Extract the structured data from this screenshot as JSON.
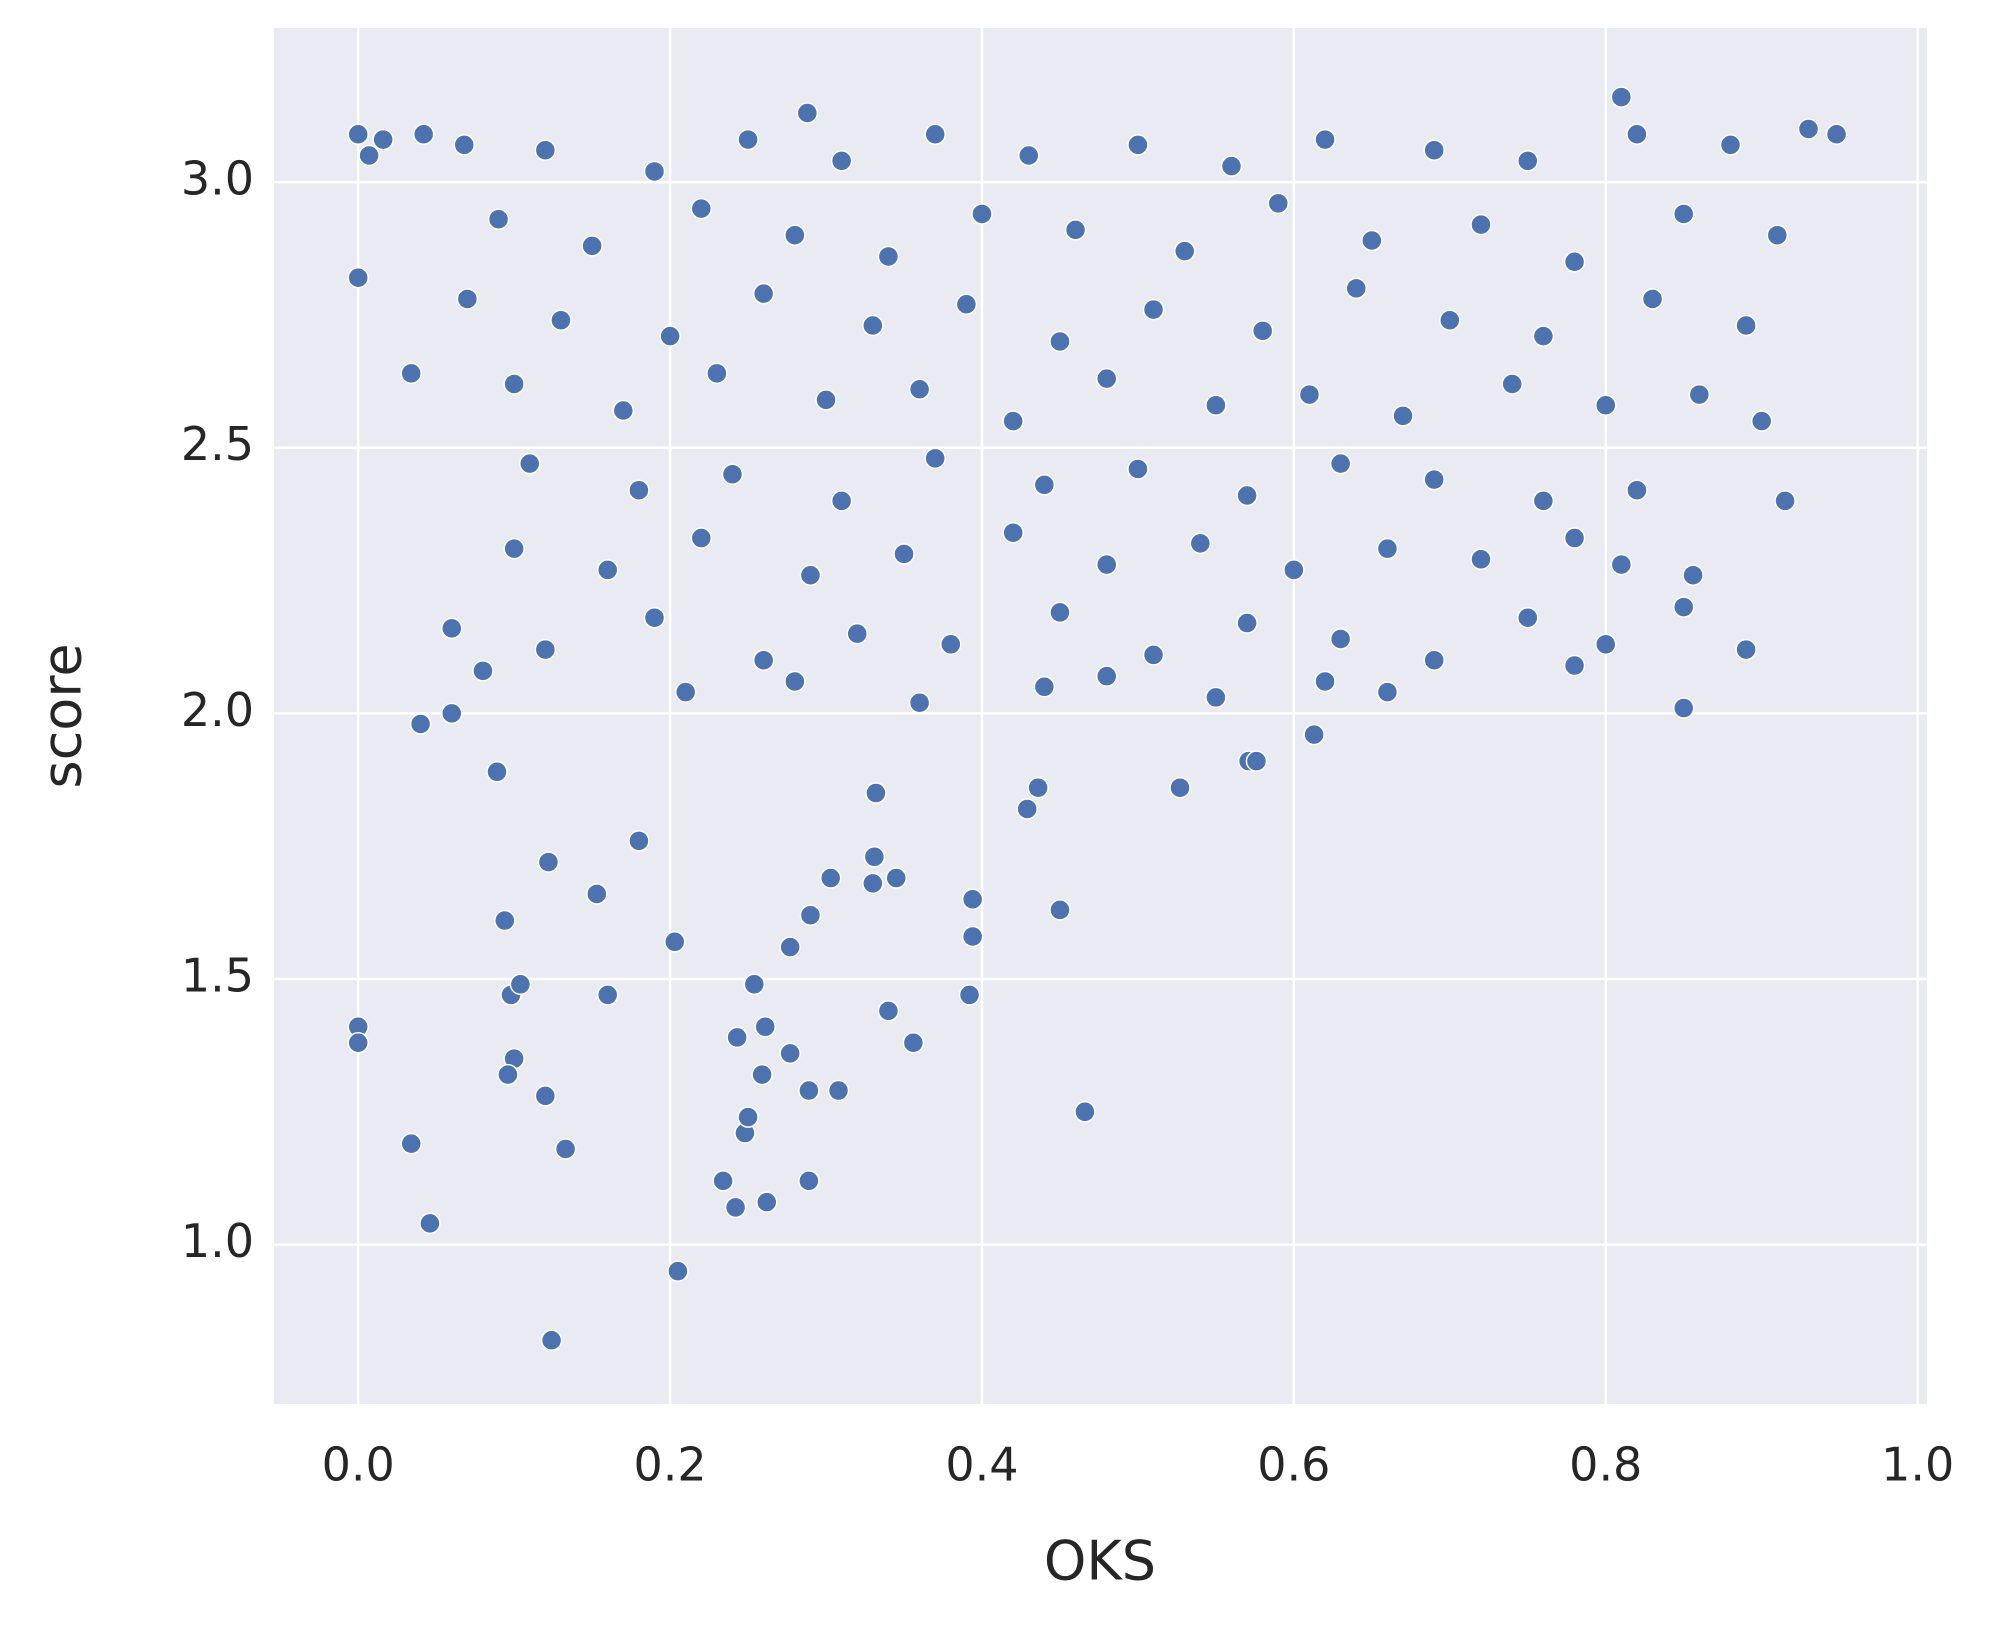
{
  "chart_data": {
    "type": "scatter",
    "x_label": "OKS",
    "y_label": "score",
    "color": "#4c72b0",
    "grid": true,
    "xlim": [
      -0.054,
      1.006
    ],
    "ylim": [
      0.7,
      3.29
    ],
    "xticks": [
      {
        "value": 0,
        "label": "0.0"
      },
      0.2,
      0.4,
      0.6,
      0.8,
      {
        "value": 1,
        "label": "1.0"
      }
    ],
    "yticks": [
      {
        "value": 1,
        "label": "1.0"
      },
      1.5,
      {
        "value": 2,
        "label": "2.0"
      },
      2.5,
      {
        "value": 3,
        "label": "3.0"
      }
    ],
    "x": [
      0.0,
      0.0,
      0.0,
      0.034,
      0.046,
      0.034,
      0.04,
      0.06,
      0.089,
      0.094,
      0.1,
      0.096,
      0.098,
      0.104,
      0.122,
      0.12,
      0.133,
      0.124,
      0.153,
      0.16,
      0.18,
      0.203,
      0.205,
      0.234,
      0.242,
      0.243,
      0.254,
      0.248,
      0.25,
      0.261,
      0.259,
      0.262,
      0.277,
      0.277,
      0.289,
      0.289,
      0.29,
      0.303,
      0.308,
      0.331,
      0.33,
      0.345,
      0.332,
      0.34,
      0.356,
      0.394,
      0.394,
      0.392,
      0.429,
      0.436,
      0.45,
      0.466,
      0.527,
      0.571,
      0.576,
      0.613,
      0.915,
      0.89,
      0.85,
      0.856,
      0.0,
      0.007,
      0.016,
      0.042,
      0.068,
      0.948,
      0.288,
      0.81,
      0.12,
      0.19,
      0.25,
      0.31,
      0.37,
      0.43,
      0.5,
      0.56,
      0.62,
      0.69,
      0.75,
      0.82,
      0.88,
      0.93,
      0.09,
      0.15,
      0.22,
      0.28,
      0.34,
      0.4,
      0.46,
      0.53,
      0.59,
      0.65,
      0.72,
      0.78,
      0.85,
      0.91,
      0.07,
      0.13,
      0.2,
      0.26,
      0.33,
      0.39,
      0.45,
      0.51,
      0.58,
      0.64,
      0.7,
      0.76,
      0.83,
      0.89,
      0.1,
      0.17,
      0.23,
      0.3,
      0.36,
      0.42,
      0.48,
      0.55,
      0.61,
      0.67,
      0.74,
      0.8,
      0.86,
      0.9,
      0.11,
      0.18,
      0.24,
      0.31,
      0.37,
      0.44,
      0.5,
      0.57,
      0.63,
      0.69,
      0.76,
      0.82,
      0.1,
      0.16,
      0.22,
      0.29,
      0.35,
      0.42,
      0.48,
      0.54,
      0.6,
      0.66,
      0.72,
      0.78,
      0.81,
      0.06,
      0.12,
      0.19,
      0.26,
      0.32,
      0.38,
      0.45,
      0.51,
      0.57,
      0.63,
      0.69,
      0.75,
      0.8,
      0.85,
      0.08,
      0.21,
      0.28,
      0.36,
      0.44,
      0.48,
      0.55,
      0.62,
      0.66,
      0.78
    ],
    "values": [
      2.82,
      1.41,
      1.38,
      1.19,
      1.04,
      2.64,
      1.98,
      2.0,
      1.89,
      1.61,
      1.35,
      1.32,
      1.47,
      1.49,
      1.72,
      1.28,
      1.18,
      0.82,
      1.66,
      1.47,
      1.76,
      1.57,
      0.95,
      1.12,
      1.07,
      1.39,
      1.49,
      1.21,
      1.24,
      1.41,
      1.32,
      1.08,
      1.56,
      1.36,
      1.29,
      1.12,
      1.62,
      1.69,
      1.29,
      1.73,
      1.68,
      1.69,
      1.85,
      1.44,
      1.38,
      1.65,
      1.58,
      1.47,
      1.82,
      1.86,
      1.63,
      1.25,
      1.86,
      1.91,
      1.91,
      1.96,
      2.4,
      2.12,
      2.01,
      2.26,
      3.09,
      3.05,
      3.08,
      3.09,
      3.07,
      3.09,
      3.13,
      3.16,
      3.06,
      3.02,
      3.08,
      3.04,
      3.09,
      3.05,
      3.07,
      3.03,
      3.08,
      3.06,
      3.04,
      3.09,
      3.07,
      3.1,
      2.93,
      2.88,
      2.95,
      2.9,
      2.86,
      2.94,
      2.91,
      2.87,
      2.96,
      2.89,
      2.92,
      2.85,
      2.94,
      2.9,
      2.78,
      2.74,
      2.71,
      2.79,
      2.73,
      2.77,
      2.7,
      2.76,
      2.72,
      2.8,
      2.74,
      2.71,
      2.78,
      2.73,
      2.62,
      2.57,
      2.64,
      2.59,
      2.61,
      2.55,
      2.63,
      2.58,
      2.6,
      2.56,
      2.62,
      2.58,
      2.6,
      2.55,
      2.47,
      2.42,
      2.45,
      2.4,
      2.48,
      2.43,
      2.46,
      2.41,
      2.47,
      2.44,
      2.4,
      2.42,
      2.31,
      2.27,
      2.33,
      2.26,
      2.3,
      2.34,
      2.28,
      2.32,
      2.27,
      2.31,
      2.29,
      2.33,
      2.28,
      2.16,
      2.12,
      2.18,
      2.1,
      2.15,
      2.13,
      2.19,
      2.11,
      2.17,
      2.14,
      2.1,
      2.18,
      2.13,
      2.2,
      2.08,
      2.04,
      2.06,
      2.02,
      2.05,
      2.07,
      2.03,
      2.06,
      2.04,
      2.09
    ]
  }
}
